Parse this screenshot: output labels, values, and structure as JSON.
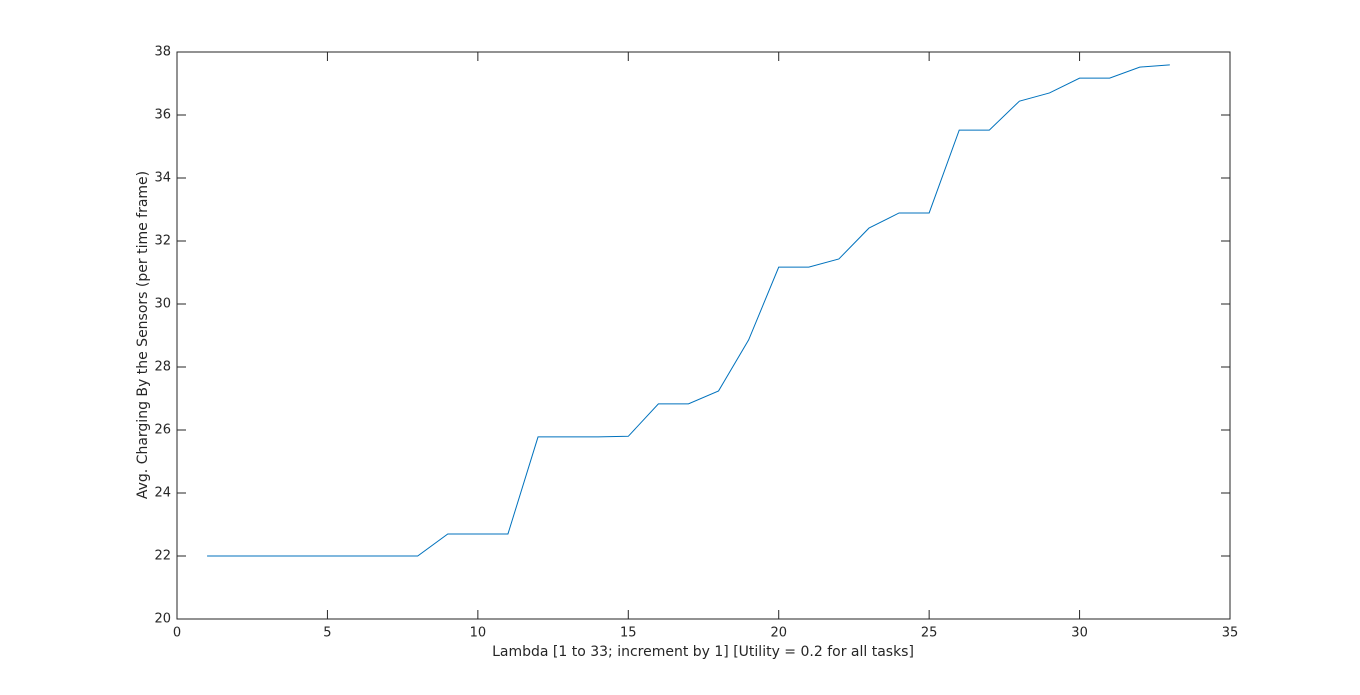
{
  "chart_data": {
    "type": "line",
    "xlabel": "Lambda [1 to 33; increment by 1] [Utility = 0.2 for all tasks]",
    "ylabel": "Avg. Charging By the Sensors (per time frame)",
    "x": [
      1,
      2,
      3,
      4,
      5,
      6,
      7,
      8,
      9,
      10,
      11,
      12,
      13,
      14,
      15,
      16,
      17,
      18,
      19,
      20,
      21,
      22,
      23,
      24,
      25,
      26,
      27,
      28,
      29,
      30,
      31,
      32,
      33
    ],
    "series": [
      {
        "color": "#0072bd",
        "values": [
          22,
          22,
          22,
          22,
          22,
          22,
          22,
          22,
          22.7,
          22.7,
          22.7,
          25.78,
          25.78,
          25.78,
          25.8,
          26.83,
          26.83,
          27.24,
          28.86,
          31.17,
          31.17,
          31.43,
          32.41,
          32.89,
          32.89,
          35.52,
          35.52,
          36.44,
          36.7,
          37.17,
          37.17,
          37.52,
          37.59
        ]
      }
    ],
    "xlim": [
      0,
      35
    ],
    "xticks": [
      0,
      5,
      10,
      15,
      20,
      25,
      30,
      35
    ],
    "ylim": [
      20,
      38
    ],
    "yticks": [
      20,
      22,
      24,
      26,
      28,
      30,
      32,
      34,
      36,
      38
    ],
    "grid": false
  }
}
